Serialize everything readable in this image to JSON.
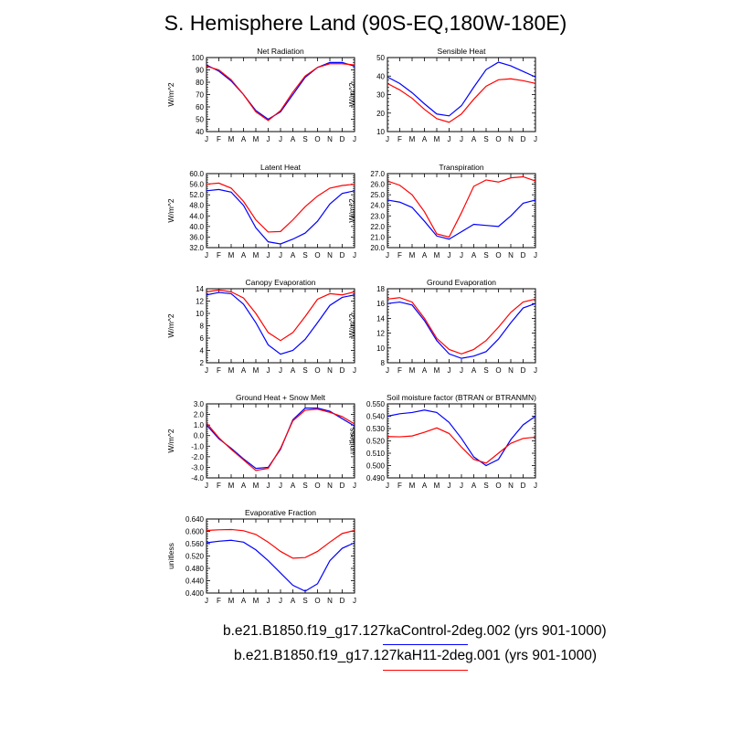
{
  "page_title": "S. Hemisphere Land (90S-EQ,180W-180E)",
  "legend": {
    "control_label": "b.e21.B1850.f19_g17.127kaControl-2deg.002 (yrs 901-1000)",
    "control_color": "#0000ff",
    "h11_label": "b.e21.B1850.f19_g17.127kaH11-2deg.001 (yrs 901-1000)",
    "h11_color": "#ff0000"
  },
  "chart_data": [
    {
      "type": "line",
      "title": "Net Radiation",
      "ylabel": "W/m^2",
      "ylim": [
        40,
        100
      ],
      "yticks": [
        "40",
        "50",
        "60",
        "70",
        "80",
        "90",
        "100"
      ],
      "categories": [
        "J",
        "F",
        "M",
        "A",
        "M",
        "J",
        "J",
        "A",
        "S",
        "O",
        "N",
        "D",
        "J"
      ],
      "series": [
        {
          "name": "Control",
          "color": "#0000ff",
          "values": [
            94,
            89,
            81,
            70,
            57,
            50,
            56,
            70,
            84,
            92,
            96,
            96,
            93
          ]
        },
        {
          "name": "H11",
          "color": "#ff0000",
          "values": [
            93,
            90,
            82,
            70,
            56,
            49,
            57,
            72,
            85,
            92,
            95,
            95,
            94
          ]
        }
      ]
    },
    {
      "type": "line",
      "title": "Sensible Heat",
      "ylabel": "W/m^2",
      "ylim": [
        10,
        50
      ],
      "yticks": [
        "10",
        "20",
        "30",
        "40",
        "50"
      ],
      "categories": [
        "J",
        "F",
        "M",
        "A",
        "M",
        "J",
        "J",
        "A",
        "S",
        "O",
        "N",
        "D",
        "J"
      ],
      "series": [
        {
          "name": "Control",
          "color": "#0000ff",
          "values": [
            39.5,
            36,
            31,
            25,
            19.5,
            18.5,
            24,
            34,
            43.5,
            47.5,
            45.5,
            42.5,
            39.5
          ]
        },
        {
          "name": "H11",
          "color": "#ff0000",
          "values": [
            36,
            32.5,
            28,
            22,
            17,
            15,
            19.5,
            27.5,
            34.5,
            38,
            38.5,
            37.5,
            36
          ]
        }
      ]
    },
    {
      "type": "line",
      "title": "Latent Heat",
      "ylabel": "W/m^2",
      "ylim": [
        32,
        60
      ],
      "yticks": [
        "32.0",
        "36.0",
        "40.0",
        "44.0",
        "48.0",
        "52.0",
        "56.0",
        "60.0"
      ],
      "categories": [
        "J",
        "F",
        "M",
        "A",
        "M",
        "J",
        "J",
        "A",
        "S",
        "O",
        "N",
        "D",
        "J"
      ],
      "series": [
        {
          "name": "Control",
          "color": "#0000ff",
          "values": [
            53.5,
            54,
            53,
            48,
            39.5,
            34.2,
            33.4,
            35.2,
            37.5,
            42,
            48.5,
            52.5,
            53.5
          ]
        },
        {
          "name": "H11",
          "color": "#ff0000",
          "values": [
            56,
            56.4,
            54.5,
            49.5,
            42.5,
            37.9,
            38.1,
            42.5,
            47.5,
            51.5,
            54.5,
            55.5,
            56
          ]
        }
      ]
    },
    {
      "type": "line",
      "title": "Transpiration",
      "ylabel": "W/m^2",
      "ylim": [
        20,
        27
      ],
      "yticks": [
        "20.0",
        "21.0",
        "22.0",
        "23.0",
        "24.0",
        "25.0",
        "26.0",
        "27.0"
      ],
      "categories": [
        "J",
        "F",
        "M",
        "A",
        "M",
        "J",
        "J",
        "A",
        "S",
        "O",
        "N",
        "D",
        "J"
      ],
      "series": [
        {
          "name": "Control",
          "color": "#0000ff",
          "values": [
            24.5,
            24.3,
            23.8,
            22.5,
            21.1,
            20.8,
            21.5,
            22.2,
            22.1,
            22,
            23,
            24.2,
            24.5
          ]
        },
        {
          "name": "H11",
          "color": "#ff0000",
          "values": [
            26.3,
            25.9,
            25,
            23.4,
            21.3,
            21,
            23.3,
            25.8,
            26.4,
            26.2,
            26.6,
            26.7,
            26.3
          ]
        }
      ]
    },
    {
      "type": "line",
      "title": "Canopy Evaporation",
      "ylabel": "W/m^2",
      "ylim": [
        2,
        14
      ],
      "yticks": [
        "2",
        "4",
        "6",
        "8",
        "10",
        "12",
        "14"
      ],
      "categories": [
        "J",
        "F",
        "M",
        "A",
        "M",
        "J",
        "J",
        "A",
        "S",
        "O",
        "N",
        "D",
        "J"
      ],
      "series": [
        {
          "name": "Control",
          "color": "#0000ff",
          "values": [
            13,
            13.4,
            13.2,
            11.5,
            8.5,
            4.9,
            3.4,
            4,
            5.8,
            8.5,
            11.3,
            12.6,
            13
          ]
        },
        {
          "name": "H11",
          "color": "#ff0000",
          "values": [
            13.5,
            13.8,
            13.5,
            12.5,
            10,
            6.9,
            5.6,
            6.9,
            9.5,
            12.3,
            13.2,
            13,
            13.5
          ]
        }
      ]
    },
    {
      "type": "line",
      "title": "Ground Evaporation",
      "ylabel": "W/m^2",
      "ylim": [
        8,
        18
      ],
      "yticks": [
        "8",
        "10",
        "12",
        "14",
        "16",
        "18"
      ],
      "categories": [
        "J",
        "F",
        "M",
        "A",
        "M",
        "J",
        "J",
        "A",
        "S",
        "O",
        "N",
        "D",
        "J"
      ],
      "series": [
        {
          "name": "Control",
          "color": "#0000ff",
          "values": [
            16,
            16.2,
            15.8,
            13.7,
            11,
            9.2,
            8.6,
            8.9,
            9.5,
            11.2,
            13.4,
            15.4,
            16
          ]
        },
        {
          "name": "H11",
          "color": "#ff0000",
          "values": [
            16.6,
            16.8,
            16.2,
            14,
            11.3,
            9.8,
            9.2,
            9.8,
            11,
            12.8,
            14.8,
            16.2,
            16.6
          ]
        }
      ]
    },
    {
      "type": "line",
      "title": "Ground Heat + Snow Melt",
      "ylabel": "W/m^2",
      "ylim": [
        -4,
        3
      ],
      "yticks": [
        "-4.0",
        "-3.0",
        "-2.0",
        "-1.0",
        "0.0",
        "1.0",
        "2.0",
        "3.0"
      ],
      "categories": [
        "J",
        "F",
        "M",
        "A",
        "M",
        "J",
        "J",
        "A",
        "S",
        "O",
        "N",
        "D",
        "J"
      ],
      "series": [
        {
          "name": "Control",
          "color": "#0000ff",
          "values": [
            1,
            -0.3,
            -1.2,
            -2.2,
            -3.1,
            -3.0,
            -1.3,
            1.5,
            2.6,
            2.6,
            2.3,
            1.6,
            0.9
          ]
        },
        {
          "name": "H11",
          "color": "#ff0000",
          "values": [
            1.2,
            -0.2,
            -1.3,
            -2.3,
            -3.3,
            -3.1,
            -1.2,
            1.4,
            2.4,
            2.5,
            2.2,
            1.8,
            1.1
          ]
        }
      ]
    },
    {
      "type": "line",
      "title": "Soil moisture factor (BTRAN or BTRANMN)",
      "ylabel": "unitless",
      "ylim": [
        0.49,
        0.55
      ],
      "yticks": [
        "0.490",
        "0.500",
        "0.510",
        "0.520",
        "0.530",
        "0.540",
        "0.550"
      ],
      "categories": [
        "J",
        "F",
        "M",
        "A",
        "M",
        "J",
        "J",
        "A",
        "S",
        "O",
        "N",
        "D",
        "J"
      ],
      "series": [
        {
          "name": "Control",
          "color": "#0000ff",
          "values": [
            0.54,
            0.542,
            0.543,
            0.545,
            0.543,
            0.535,
            0.522,
            0.507,
            0.5,
            0.505,
            0.521,
            0.533,
            0.54
          ]
        },
        {
          "name": "H11",
          "color": "#ff0000",
          "values": [
            0.5235,
            0.5233,
            0.524,
            0.527,
            0.5305,
            0.526,
            0.515,
            0.505,
            0.502,
            0.51,
            0.518,
            0.522,
            0.523
          ]
        }
      ]
    },
    {
      "type": "line",
      "title": "Evaporative Fraction",
      "ylabel": "unitless",
      "ylim": [
        0.4,
        0.64
      ],
      "yticks": [
        "0.400",
        "0.440",
        "0.480",
        "0.520",
        "0.560",
        "0.600",
        "0.640"
      ],
      "categories": [
        "J",
        "F",
        "M",
        "A",
        "M",
        "J",
        "J",
        "A",
        "S",
        "O",
        "N",
        "D",
        "J"
      ],
      "series": [
        {
          "name": "Control",
          "color": "#0000ff",
          "values": [
            0.563,
            0.568,
            0.571,
            0.565,
            0.54,
            0.505,
            0.465,
            0.425,
            0.406,
            0.43,
            0.505,
            0.545,
            0.563
          ]
        },
        {
          "name": "H11",
          "color": "#ff0000",
          "values": [
            0.603,
            0.605,
            0.606,
            0.602,
            0.59,
            0.565,
            0.535,
            0.513,
            0.515,
            0.535,
            0.565,
            0.593,
            0.603
          ]
        }
      ]
    }
  ]
}
